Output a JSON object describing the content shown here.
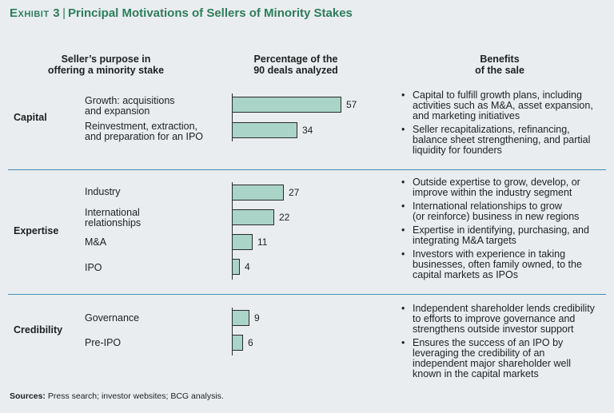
{
  "title": {
    "exhibit": "Exhibit 3",
    "separator": "|",
    "text": "Principal Motivations of Sellers of Minority Stakes"
  },
  "headers": {
    "purpose": "Seller’s purpose in\noffering a minority stake",
    "percentage": "Percentage of the\n90 deals analyzed",
    "benefits": "Benefits\nof the sale"
  },
  "groups": [
    {
      "label": "Capital",
      "benefits": [
        "Capital to fulfill growth plans, including\nactivities such as M&A, asset expansion,\nand marketing initiatives",
        "Seller recapitalizations, refinancing,\nbalance sheet strengthening, and partial\nliquidity for founders"
      ]
    },
    {
      "label": "Expertise",
      "benefits": [
        "Outside expertise to grow, develop, or\nimprove within the industry segment",
        "International relationships to grow\n(or reinforce) business in new regions",
        "Expertise in identifying, purchasing, and\nintegrating M&A targets",
        "Investors with experience in taking\nbusinesses, often family owned, to the\ncapital markets as IPOs"
      ]
    },
    {
      "label": "Credibility",
      "benefits": [
        "Independent shareholder lends credibility\nto efforts to improve governance and\nstrengthens outside investor support",
        "Ensures the success of an IPO by\nleveraging the credibility of an\nindependent major shareholder well\nknown in the capital markets"
      ]
    }
  ],
  "chart_data": {
    "type": "bar",
    "orientation": "horizontal",
    "categories": [
      "Growth: acquisitions\nand expansion",
      "Reinvestment, extraction,\nand preparation for an IPO",
      "Industry",
      "International\nrelationships",
      "M&A",
      "IPO",
      "Governance",
      "Pre-IPO"
    ],
    "groups": [
      "Capital",
      "Capital",
      "Expertise",
      "Expertise",
      "Expertise",
      "Expertise",
      "Credibility",
      "Credibility"
    ],
    "values": [
      57,
      34,
      27,
      22,
      11,
      4,
      9,
      6
    ],
    "bar_color": "#a9d4c7",
    "xlim": [
      0,
      60
    ]
  },
  "sources": {
    "label": "Sources:",
    "text": " Press search; investor websites; BCG analysis."
  }
}
